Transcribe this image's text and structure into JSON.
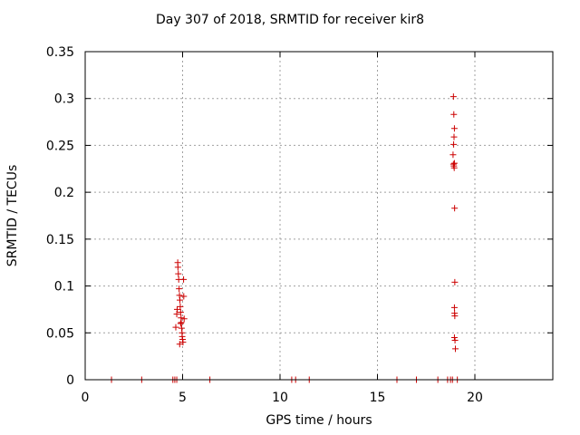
{
  "chart_data": {
    "type": "scatter",
    "title": "Day 307 of 2018, SRMTID for receiver kir8",
    "xlabel": "GPS time / hours",
    "ylabel": "SRMTID / TECUs",
    "xlim": [
      0,
      24
    ],
    "ylim": [
      0,
      0.35
    ],
    "xticks": [
      0,
      5,
      10,
      15,
      20
    ],
    "yticks": [
      0,
      0.05,
      0.1,
      0.15,
      0.2,
      0.25,
      0.3,
      0.35
    ],
    "grid": true,
    "marker": "+",
    "color": "#cc0000",
    "points": [
      [
        1.35,
        0
      ],
      [
        2.9,
        0
      ],
      [
        4.5,
        0
      ],
      [
        4.6,
        0
      ],
      [
        4.7,
        0
      ],
      [
        6.4,
        0
      ],
      [
        10.6,
        0
      ],
      [
        10.8,
        0
      ],
      [
        11.5,
        0
      ],
      [
        16.0,
        0
      ],
      [
        17.0,
        0
      ],
      [
        18.1,
        0
      ],
      [
        18.6,
        0
      ],
      [
        18.75,
        0
      ],
      [
        18.85,
        0
      ],
      [
        19.1,
        0
      ],
      [
        4.65,
        0.056
      ],
      [
        4.7,
        0.07
      ],
      [
        4.72,
        0.075
      ],
      [
        4.75,
        0.125
      ],
      [
        4.76,
        0.12
      ],
      [
        4.78,
        0.113
      ],
      [
        4.8,
        0.107
      ],
      [
        4.82,
        0.097
      ],
      [
        4.84,
        0.09
      ],
      [
        4.86,
        0.085
      ],
      [
        4.88,
        0.078
      ],
      [
        4.9,
        0.072
      ],
      [
        4.92,
        0.066
      ],
      [
        4.93,
        0.061
      ],
      [
        4.95,
        0.055
      ],
      [
        4.97,
        0.05
      ],
      [
        4.98,
        0.046
      ],
      [
        5.0,
        0.043
      ],
      [
        5.02,
        0.04
      ],
      [
        5.05,
        0.107
      ],
      [
        5.06,
        0.089
      ],
      [
        5.08,
        0.065
      ],
      [
        4.85,
        0.038
      ],
      [
        4.9,
        0.06
      ],
      [
        18.9,
        0.302
      ],
      [
        18.92,
        0.283
      ],
      [
        18.95,
        0.268
      ],
      [
        18.93,
        0.259
      ],
      [
        18.91,
        0.251
      ],
      [
        18.88,
        0.24
      ],
      [
        18.9,
        0.23
      ],
      [
        18.95,
        0.231
      ],
      [
        18.92,
        0.228
      ],
      [
        18.94,
        0.226
      ],
      [
        18.96,
        0.183
      ],
      [
        18.97,
        0.104
      ],
      [
        18.95,
        0.077
      ],
      [
        18.96,
        0.071
      ],
      [
        18.97,
        0.068
      ],
      [
        18.95,
        0.045
      ],
      [
        18.98,
        0.042
      ],
      [
        19.0,
        0.033
      ]
    ]
  }
}
